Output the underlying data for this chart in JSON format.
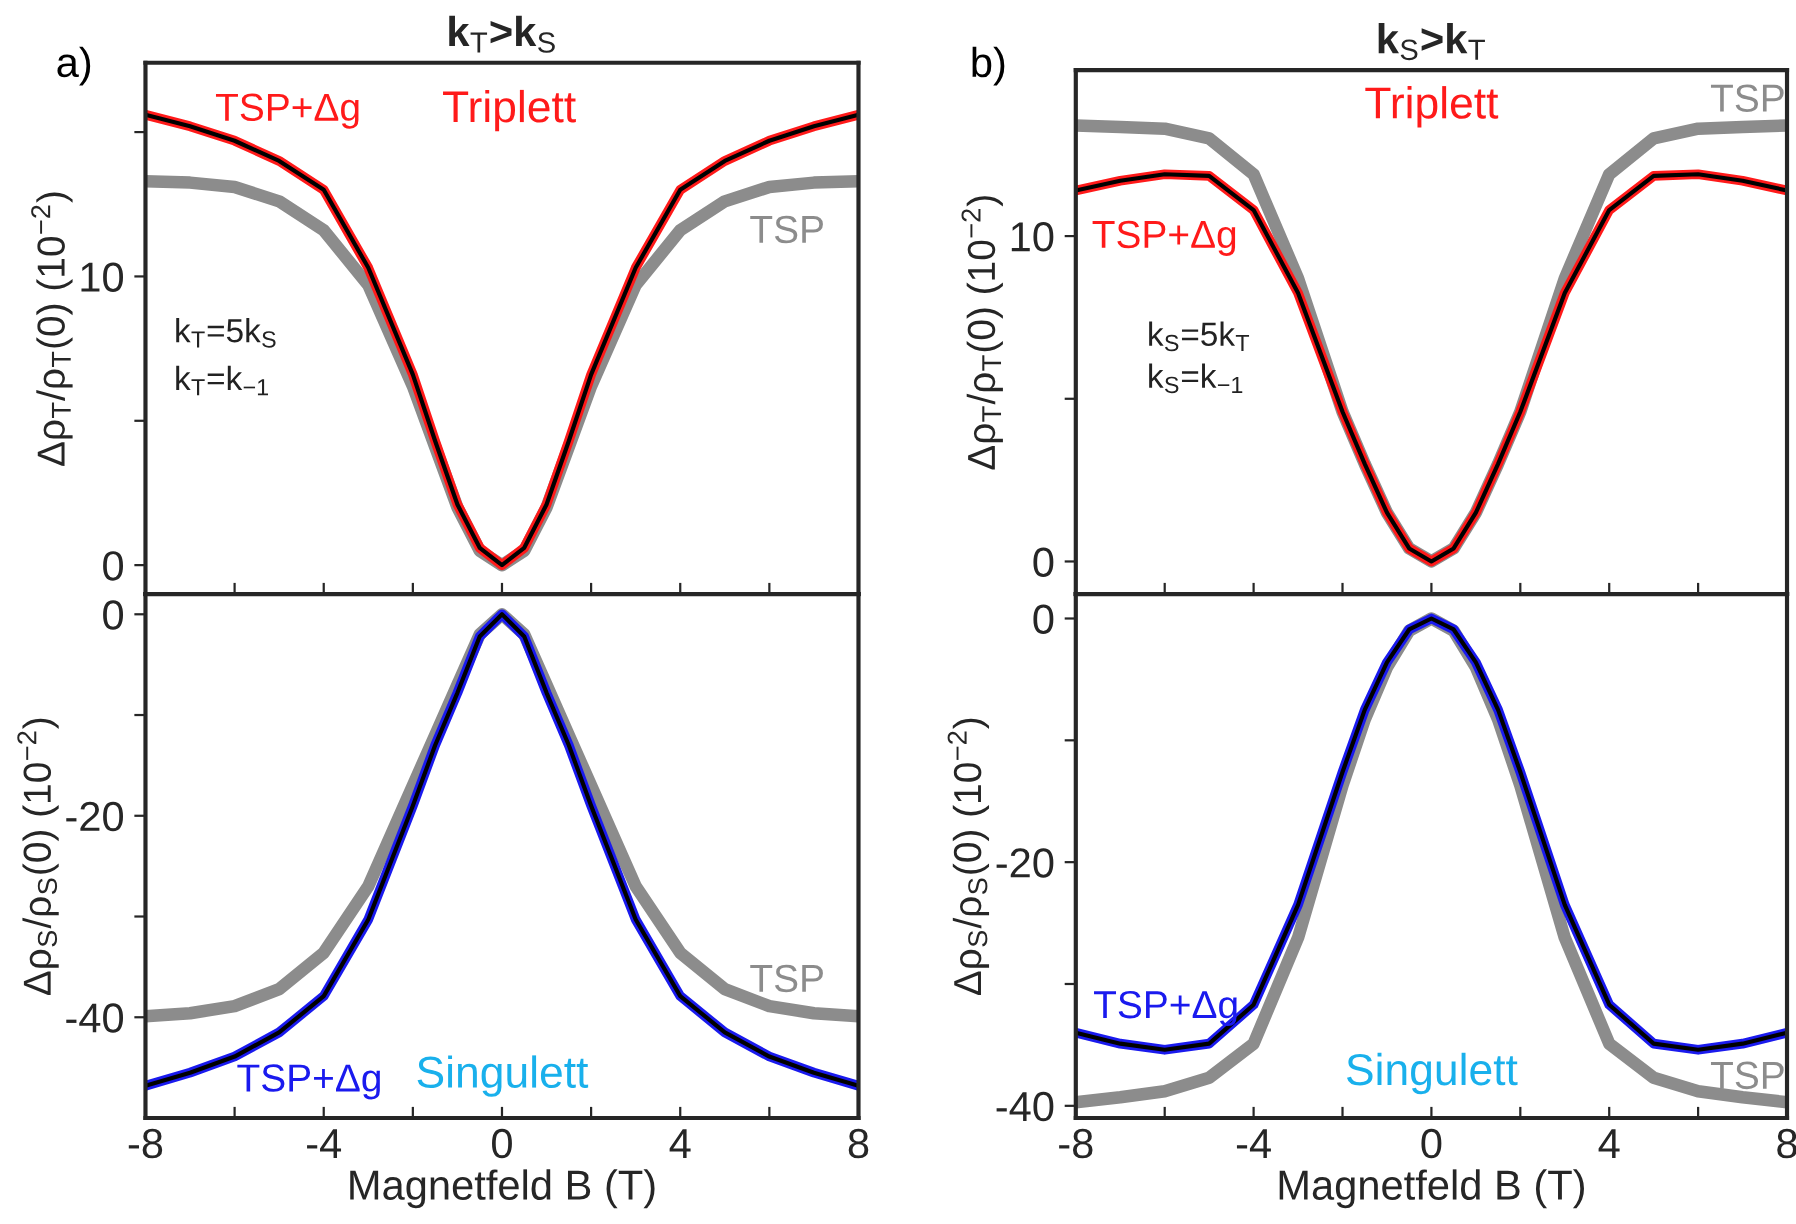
{
  "chart_data": [
    {
      "type": "line",
      "title": "k$_{T}$>k$_{S}$",
      "ylabel": "Δρ$_{T}$/ρ$_{T}$(0) (10$^{−2}$)",
      "tick_labels": "y",
      "x": [
        -8,
        -7,
        -6,
        -5,
        -4,
        -3,
        -2,
        -1.5,
        -1,
        -0.5,
        0,
        0.5,
        1,
        1.5,
        2,
        3,
        4,
        5,
        6,
        7,
        8
      ],
      "series": [
        {
          "name": "TSP",
          "color": "#8c8c8c",
          "values": [
            13.3,
            13.25,
            13.1,
            12.6,
            11.6,
            9.7,
            6.2,
            4.1,
            2.0,
            0.5,
            0,
            0.5,
            2.0,
            4.1,
            6.2,
            9.7,
            11.6,
            12.6,
            13.1,
            13.25,
            13.3
          ]
        },
        {
          "name": "TSP+Δg",
          "color": "#ff1a1a",
          "values": [
            15.6,
            15.2,
            14.7,
            14.0,
            13.0,
            10.3,
            6.6,
            4.3,
            2.1,
            0.6,
            0,
            0.6,
            2.1,
            4.3,
            6.6,
            10.3,
            13.0,
            14.0,
            14.7,
            15.2,
            15.6
          ]
        },
        {
          "color": "#000000",
          "values": [
            15.6,
            15.2,
            14.7,
            14.0,
            13.0,
            10.3,
            6.6,
            4.3,
            2.1,
            0.6,
            0,
            0.6,
            2.1,
            4.3,
            6.6,
            10.3,
            13.0,
            14.0,
            14.7,
            15.2,
            15.6
          ]
        }
      ],
      "xlim": [
        -8,
        8
      ],
      "xticks": [
        -8,
        {
          "value": -6,
          "label": null
        },
        -4,
        {
          "value": -2,
          "label": null
        },
        0,
        {
          "value": 2,
          "label": null
        },
        4,
        {
          "value": 6,
          "label": null
        },
        8
      ],
      "ylim": [
        -1,
        17.4
      ],
      "yticks": [
        0,
        {
          "value": 5,
          "label": null
        },
        10,
        {
          "value": 15,
          "label": null
        }
      ],
      "annotations": [
        "a)",
        "Triplett",
        "k$_{T}$=5k$_{S}$",
        "k$_{T}$=k$_{−1}$"
      ]
    },
    {
      "type": "line",
      "xlabel": "Magnetfeld B (T)",
      "ylabel": "Δρ$_{S}$/ρ$_{S}$(0) (10$^{−2}$)",
      "x": [
        -8,
        -7,
        -6,
        -5,
        -4,
        -3,
        -2,
        -1.5,
        -1,
        -0.5,
        0,
        0.5,
        1,
        1.5,
        2,
        3,
        4,
        5,
        6,
        7,
        8
      ],
      "series": [
        {
          "name": "TSP",
          "color": "#8c8c8c",
          "values": [
            -39.9,
            -39.6,
            -38.9,
            -37.2,
            -33.6,
            -27.0,
            -17.0,
            -12.0,
            -7.0,
            -2.0,
            0,
            -2.0,
            -7.0,
            -12.0,
            -17.0,
            -27.0,
            -33.6,
            -37.2,
            -38.9,
            -39.6,
            -39.9
          ]
        },
        {
          "name": "TSP+Δg",
          "color": "#1a1aee",
          "values": [
            -46.8,
            -45.5,
            -43.9,
            -41.5,
            -37.9,
            -30.3,
            -19.0,
            -13.0,
            -7.8,
            -2.2,
            0,
            -2.2,
            -7.8,
            -13.0,
            -19.0,
            -30.3,
            -37.9,
            -41.5,
            -43.9,
            -45.5,
            -46.8
          ]
        },
        {
          "color": "#000000",
          "values": [
            -46.8,
            -45.5,
            -43.9,
            -41.5,
            -37.9,
            -30.3,
            -19.0,
            -13.0,
            -7.8,
            -2.2,
            0,
            -2.2,
            -7.8,
            -13.0,
            -19.0,
            -30.3,
            -37.9,
            -41.5,
            -43.9,
            -45.5,
            -46.8
          ]
        }
      ],
      "xlim": [
        -8,
        8
      ],
      "xticks": [
        -8,
        {
          "value": -6,
          "label": null
        },
        -4,
        {
          "value": -2,
          "label": null
        },
        0,
        {
          "value": 2,
          "label": null
        },
        4,
        {
          "value": 6,
          "label": null
        },
        8
      ],
      "ylim": [
        -50,
        2
      ],
      "yticks": [
        0,
        {
          "value": -10,
          "label": null
        },
        -20,
        {
          "value": -30,
          "label": null
        },
        -40
      ],
      "annotations": [
        "Singulett"
      ]
    },
    {
      "type": "line",
      "title": "k$_{S}$>k$_{T}$",
      "ylabel": "Δρ$_{T}$/ρ$_{T}$(0) (10$^{−2}$)",
      "tick_labels": "y",
      "x": [
        -8,
        -7,
        -6,
        -5,
        -4,
        -3,
        -2,
        -1.5,
        -1,
        -0.5,
        0,
        0.5,
        1,
        1.5,
        2,
        3,
        4,
        5,
        6,
        7,
        8
      ],
      "series": [
        {
          "name": "TSP",
          "color": "#8c8c8c",
          "values": [
            13.4,
            13.35,
            13.3,
            13.0,
            11.9,
            8.7,
            4.6,
            3.0,
            1.5,
            0.4,
            0,
            0.4,
            1.5,
            3.0,
            4.6,
            8.7,
            11.9,
            13.0,
            13.3,
            13.35,
            13.4
          ]
        },
        {
          "name": "TSP+Δg",
          "color": "#ff1a1a",
          "values": [
            11.4,
            11.7,
            11.9,
            11.85,
            10.8,
            8.25,
            4.6,
            3.0,
            1.5,
            0.4,
            0,
            0.4,
            1.5,
            3.0,
            4.6,
            8.25,
            10.8,
            11.85,
            11.9,
            11.7,
            11.4
          ]
        },
        {
          "color": "#000000",
          "values": [
            11.4,
            11.7,
            11.9,
            11.85,
            10.8,
            8.25,
            4.6,
            3.0,
            1.5,
            0.4,
            0,
            0.4,
            1.5,
            3.0,
            4.6,
            8.25,
            10.8,
            11.85,
            11.9,
            11.7,
            11.4
          ]
        }
      ],
      "xlim": [
        -8,
        8
      ],
      "xticks": [
        -8,
        {
          "value": -6,
          "label": null
        },
        -4,
        {
          "value": -2,
          "label": null
        },
        0,
        {
          "value": 2,
          "label": null
        },
        4,
        {
          "value": 6,
          "label": null
        },
        8
      ],
      "ylim": [
        -1,
        15.1
      ],
      "yticks": [
        0,
        {
          "value": 5,
          "label": null
        },
        10
      ],
      "annotations": [
        "b)",
        "Triplett",
        "k$_{S}$=5k$_{T}$",
        "k$_{S}$=k$_{−1}$"
      ]
    },
    {
      "type": "line",
      "xlabel": "Magnetfeld B (T)",
      "ylabel": "Δρ$_{S}$/ρ$_{S}$(0) (10$^{−2}$)",
      "x": [
        -8,
        -7,
        -6,
        -5,
        -4,
        -3,
        -2,
        -1.5,
        -1,
        -0.5,
        0,
        0.5,
        1,
        1.5,
        2,
        3,
        4,
        5,
        6,
        7,
        8
      ],
      "series": [
        {
          "name": "TSP",
          "color": "#8c8c8c",
          "values": [
            -39.7,
            -39.3,
            -38.8,
            -37.7,
            -34.9,
            -26.2,
            -13.7,
            -8.3,
            -4.0,
            -1.0,
            0,
            -1.0,
            -4.0,
            -8.3,
            -13.7,
            -26.2,
            -34.9,
            -37.7,
            -38.8,
            -39.3,
            -39.7
          ]
        },
        {
          "name": "TSP+Δg",
          "color": "#1a1aee",
          "values": [
            -34.0,
            -34.9,
            -35.4,
            -34.9,
            -31.7,
            -23.5,
            -12.6,
            -7.5,
            -3.6,
            -0.9,
            0,
            -0.9,
            -3.6,
            -7.5,
            -12.6,
            -23.5,
            -31.7,
            -34.9,
            -35.4,
            -34.9,
            -34.0
          ]
        },
        {
          "color": "#000000",
          "values": [
            -34.0,
            -34.9,
            -35.4,
            -34.9,
            -31.7,
            -23.5,
            -12.6,
            -7.5,
            -3.6,
            -0.9,
            0,
            -0.9,
            -3.6,
            -7.5,
            -12.6,
            -23.5,
            -31.7,
            -34.9,
            -35.4,
            -34.9,
            -34.0
          ]
        }
      ],
      "xlim": [
        -8,
        8
      ],
      "xticks": [
        -8,
        {
          "value": -6,
          "label": null
        },
        -4,
        {
          "value": -2,
          "label": null
        },
        0,
        {
          "value": 2,
          "label": null
        },
        4,
        {
          "value": 6,
          "label": null
        },
        8
      ],
      "ylim": [
        -41,
        2
      ],
      "yticks": [
        0,
        {
          "value": -10,
          "label": null
        },
        -20,
        {
          "value": -30,
          "label": null
        },
        -40
      ],
      "annotations": [
        "Singulett"
      ]
    }
  ]
}
